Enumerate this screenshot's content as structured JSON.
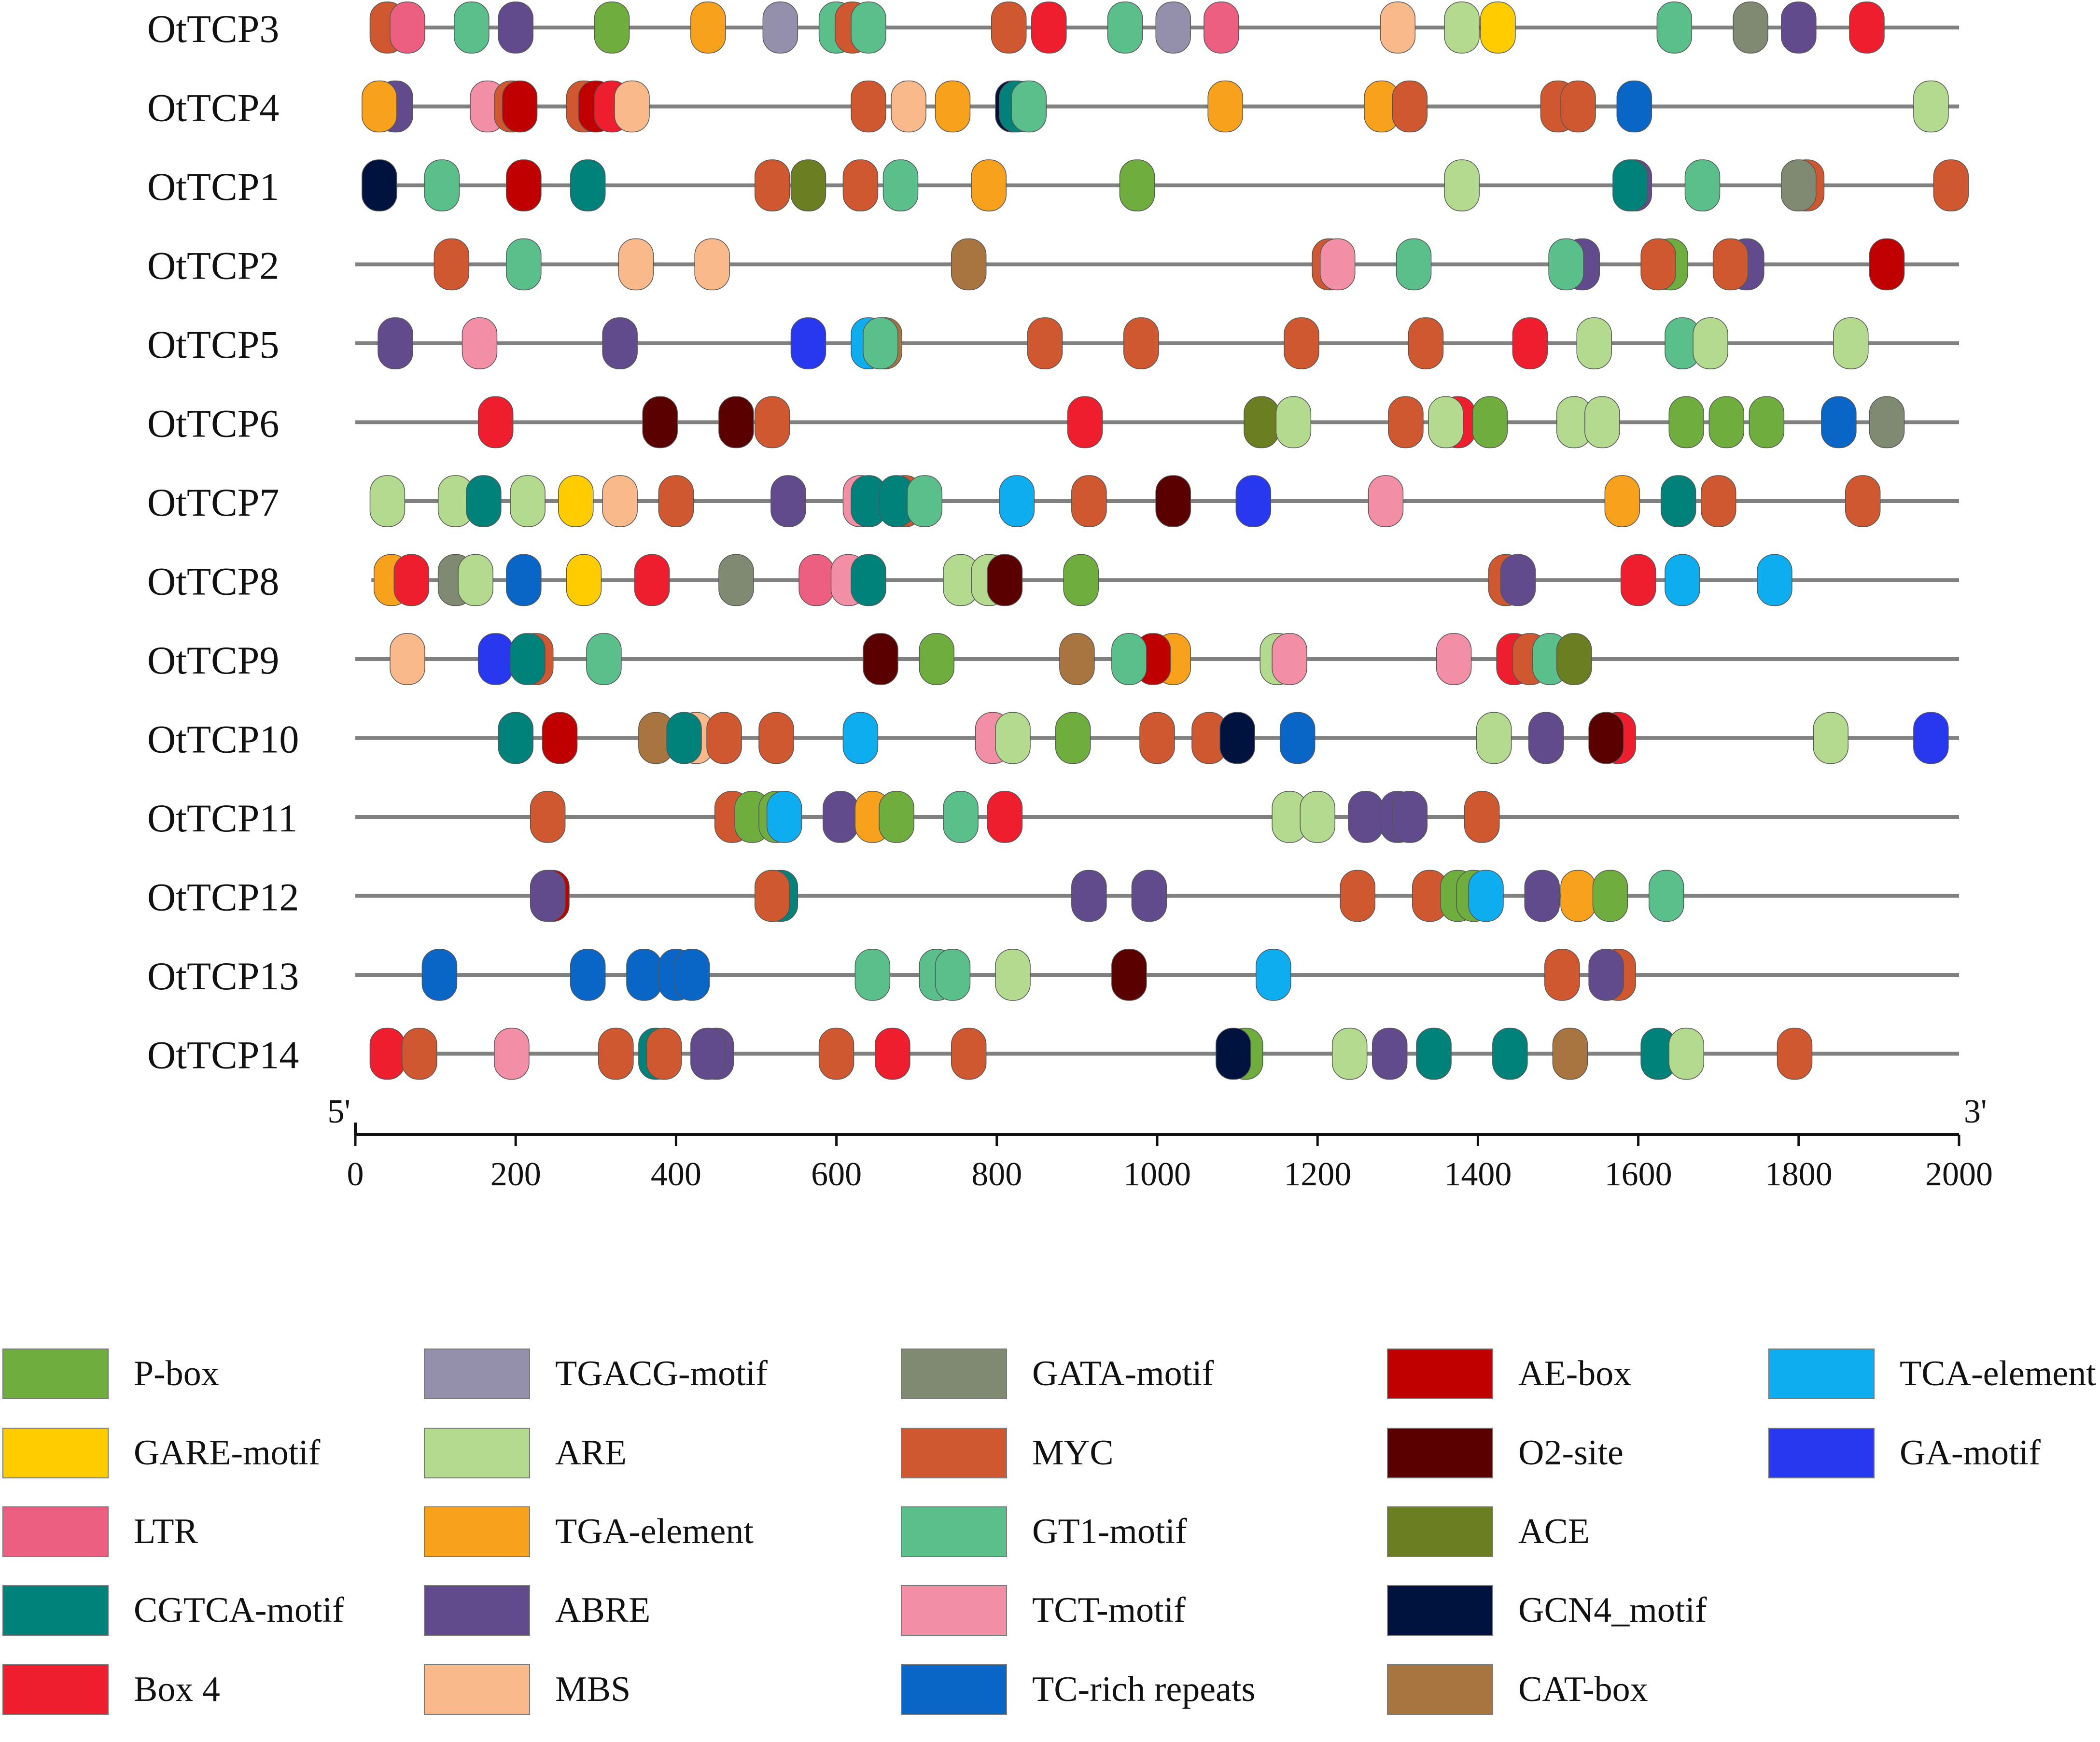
{
  "chart_data": {
    "type": "motif-map",
    "xlim": [
      0,
      2000
    ],
    "x_ticks": [
      "0",
      "200",
      "400",
      "600",
      "800",
      "1000",
      "1200",
      "1400",
      "1600",
      "1800",
      "2000"
    ],
    "x_tick_values": [
      0,
      200,
      400,
      600,
      800,
      1000,
      1200,
      1400,
      1600,
      1800,
      2000
    ],
    "end_labels": {
      "left": "5'",
      "right": "3'"
    },
    "colors": {
      "P-box": "#70ad3f",
      "TGACG-motif": "#9490ab",
      "GATA-motif": "#808a72",
      "AE-box": "#c00000",
      "TCA-element": "#0eadef",
      "GARE-motif": "#ffcc00",
      "ARE": "#b3da8e",
      "MYC": "#d05830",
      "O2-site": "#5a0000",
      "GA-motif": "#2838ef",
      "LTR": "#ed5f80",
      "TGA-element": "#f8a11c",
      "GT1-motif": "#5bbf8c",
      "ACE": "#6b7e22",
      "CGTCA-motif": "#00827a",
      "ABRE": "#624b8c",
      "TCT-motif": "#f28ea6",
      "GCN4_motif": "#00133f",
      "Box 4": "#ee1e2e",
      "MBS": "#f9b98a",
      "TC-rich repeats": "#0a66c6",
      "CAT-box": "#a87541"
    },
    "legend": [
      "P-box",
      "GARE-motif",
      "LTR",
      "CGTCA-motif",
      "Box 4",
      "TGACG-motif",
      "ARE",
      "TGA-element",
      "ABRE",
      "MBS",
      "GATA-motif",
      "MYC",
      "GT1-motif",
      "TCT-motif",
      "TC-rich repeats",
      "AE-box",
      "O2-site",
      "ACE",
      "GCN4_motif",
      "CAT-box",
      "TCA-element",
      "GA-motif"
    ],
    "genes": [
      {
        "name": "OtTCP3",
        "line": [
          20,
          2000
        ],
        "motifs": [
          [
            40,
            "MYC"
          ],
          [
            65,
            "LTR"
          ],
          [
            145,
            "GT1-motif"
          ],
          [
            200,
            "ABRE"
          ],
          [
            320,
            "P-box"
          ],
          [
            440,
            "TGA-element"
          ],
          [
            530,
            "TGACG-motif"
          ],
          [
            600,
            "GT1-motif"
          ],
          [
            620,
            "MYC"
          ],
          [
            640,
            "GT1-motif"
          ],
          [
            815,
            "MYC"
          ],
          [
            865,
            "Box 4"
          ],
          [
            960,
            "GT1-motif"
          ],
          [
            1020,
            "TGACG-motif"
          ],
          [
            1080,
            "LTR"
          ],
          [
            1300,
            "MBS"
          ],
          [
            1380,
            "ARE"
          ],
          [
            1425,
            "GARE-motif"
          ],
          [
            1645,
            "GT1-motif"
          ],
          [
            1740,
            "GATA-motif"
          ],
          [
            1800,
            "ABRE"
          ],
          [
            1885,
            "Box 4"
          ]
        ]
      },
      {
        "name": "OtTCP4",
        "line": [
          20,
          2000
        ],
        "motifs": [
          [
            50,
            "ABRE"
          ],
          [
            30,
            "TGA-element"
          ],
          [
            165,
            "TCT-motif"
          ],
          [
            195,
            "MYC"
          ],
          [
            205,
            "AE-box"
          ],
          [
            285,
            "MYC"
          ],
          [
            300,
            "AE-box"
          ],
          [
            320,
            "Box 4"
          ],
          [
            345,
            "MBS"
          ],
          [
            640,
            "MYC"
          ],
          [
            690,
            "MBS"
          ],
          [
            745,
            "TGA-element"
          ],
          [
            820,
            "GCN4_motif"
          ],
          [
            825,
            "CGTCA-motif"
          ],
          [
            840,
            "GT1-motif"
          ],
          [
            1085,
            "TGA-element"
          ],
          [
            1280,
            "TGA-element"
          ],
          [
            1315,
            "MYC"
          ],
          [
            1500,
            "MYC"
          ],
          [
            1525,
            "MYC"
          ],
          [
            1595,
            "TC-rich repeats"
          ],
          [
            1965,
            "ARE"
          ]
        ]
      },
      {
        "name": "OtTCP1",
        "line": [
          20,
          2000
        ],
        "motifs": [
          [
            30,
            "GCN4_motif"
          ],
          [
            108,
            "GT1-motif"
          ],
          [
            210,
            "AE-box"
          ],
          [
            290,
            "CGTCA-motif"
          ],
          [
            520,
            "MYC"
          ],
          [
            565,
            "ACE"
          ],
          [
            630,
            "MYC"
          ],
          [
            680,
            "GT1-motif"
          ],
          [
            790,
            "TGA-element"
          ],
          [
            975,
            "P-box"
          ],
          [
            1380,
            "ARE"
          ],
          [
            1595,
            "ABRE"
          ],
          [
            1590,
            "CGTCA-motif"
          ],
          [
            1680,
            "GT1-motif"
          ],
          [
            1810,
            "MYC"
          ],
          [
            1800,
            "GATA-motif"
          ],
          [
            1990,
            "MYC"
          ]
        ]
      },
      {
        "name": "OtTCP2",
        "line": [
          0,
          2000
        ],
        "motifs": [
          [
            120,
            "MYC"
          ],
          [
            210,
            "GT1-motif"
          ],
          [
            350,
            "MBS"
          ],
          [
            445,
            "MBS"
          ],
          [
            765,
            "CAT-box"
          ],
          [
            1215,
            "MYC"
          ],
          [
            1225,
            "TCT-motif"
          ],
          [
            1320,
            "GT1-motif"
          ],
          [
            1530,
            "ABRE"
          ],
          [
            1510,
            "GT1-motif"
          ],
          [
            1640,
            "P-box"
          ],
          [
            1625,
            "MYC"
          ],
          [
            1735,
            "ABRE"
          ],
          [
            1715,
            "MYC"
          ],
          [
            1910,
            "AE-box"
          ]
        ]
      },
      {
        "name": "OtTCP5",
        "line": [
          0,
          2000
        ],
        "motifs": [
          [
            50,
            "ABRE"
          ],
          [
            155,
            "TCT-motif"
          ],
          [
            330,
            "ABRE"
          ],
          [
            565,
            "GA-motif"
          ],
          [
            660,
            "CAT-box"
          ],
          [
            640,
            "TCA-element"
          ],
          [
            655,
            "GT1-motif"
          ],
          [
            860,
            "MYC"
          ],
          [
            980,
            "MYC"
          ],
          [
            1180,
            "MYC"
          ],
          [
            1335,
            "MYC"
          ],
          [
            1465,
            "Box 4"
          ],
          [
            1545,
            "ARE"
          ],
          [
            1655,
            "GT1-motif"
          ],
          [
            1690,
            "ARE"
          ],
          [
            1865,
            "ARE"
          ]
        ]
      },
      {
        "name": "OtTCP6",
        "line": [
          0,
          2000
        ],
        "motifs": [
          [
            175,
            "Box 4"
          ],
          [
            380,
            "O2-site"
          ],
          [
            475,
            "O2-site"
          ],
          [
            520,
            "MYC"
          ],
          [
            910,
            "Box 4"
          ],
          [
            1130,
            "ACE"
          ],
          [
            1170,
            "ARE"
          ],
          [
            1310,
            "MYC"
          ],
          [
            1375,
            "Box 4"
          ],
          [
            1360,
            "ARE"
          ],
          [
            1415,
            "P-box"
          ],
          [
            1520,
            "ARE"
          ],
          [
            1555,
            "ARE"
          ],
          [
            1660,
            "P-box"
          ],
          [
            1710,
            "P-box"
          ],
          [
            1760,
            "P-box"
          ],
          [
            1850,
            "TC-rich repeats"
          ],
          [
            1910,
            "GATA-motif"
          ]
        ]
      },
      {
        "name": "OtTCP7",
        "line": [
          20,
          2000
        ],
        "motifs": [
          [
            40,
            "ARE"
          ],
          [
            125,
            "ARE"
          ],
          [
            160,
            "CGTCA-motif"
          ],
          [
            215,
            "ARE"
          ],
          [
            275,
            "GARE-motif"
          ],
          [
            330,
            "MBS"
          ],
          [
            400,
            "MYC"
          ],
          [
            540,
            "ABRE"
          ],
          [
            630,
            "TCT-motif"
          ],
          [
            640,
            "CGTCA-motif"
          ],
          [
            685,
            "MYC"
          ],
          [
            675,
            "CGTCA-motif"
          ],
          [
            710,
            "GT1-motif"
          ],
          [
            825,
            "TCA-element"
          ],
          [
            915,
            "MYC"
          ],
          [
            1020,
            "O2-site"
          ],
          [
            1120,
            "GA-motif"
          ],
          [
            1285,
            "TCT-motif"
          ],
          [
            1580,
            "TGA-element"
          ],
          [
            1650,
            "CGTCA-motif"
          ],
          [
            1700,
            "MYC"
          ],
          [
            1880,
            "MYC"
          ]
        ]
      },
      {
        "name": "OtTCP8",
        "line": [
          20,
          2000
        ],
        "motifs": [
          [
            45,
            "TGA-element"
          ],
          [
            70,
            "Box 4"
          ],
          [
            125,
            "GATA-motif"
          ],
          [
            150,
            "ARE"
          ],
          [
            210,
            "TC-rich repeats"
          ],
          [
            285,
            "GARE-motif"
          ],
          [
            370,
            "Box 4"
          ],
          [
            475,
            "GATA-motif"
          ],
          [
            575,
            "LTR"
          ],
          [
            615,
            "TCT-motif"
          ],
          [
            640,
            "CGTCA-motif"
          ],
          [
            755,
            "ARE"
          ],
          [
            790,
            "ARE"
          ],
          [
            810,
            "O2-site"
          ],
          [
            905,
            "P-box"
          ],
          [
            1435,
            "MYC"
          ],
          [
            1450,
            "ABRE"
          ],
          [
            1600,
            "Box 4"
          ],
          [
            1655,
            "TCA-element"
          ],
          [
            1770,
            "TCA-element"
          ]
        ]
      },
      {
        "name": "OtTCP9",
        "line": [
          0,
          2000
        ],
        "motifs": [
          [
            65,
            "MBS"
          ],
          [
            175,
            "GA-motif"
          ],
          [
            225,
            "MYC"
          ],
          [
            215,
            "CGTCA-motif"
          ],
          [
            310,
            "GT1-motif"
          ],
          [
            655,
            "O2-site"
          ],
          [
            725,
            "P-box"
          ],
          [
            900,
            "CAT-box"
          ],
          [
            1020,
            "TGA-element"
          ],
          [
            995,
            "AE-box"
          ],
          [
            965,
            "GT1-motif"
          ],
          [
            1150,
            "ARE"
          ],
          [
            1165,
            "TCT-motif"
          ],
          [
            1370,
            "TCT-motif"
          ],
          [
            1445,
            "Box 4"
          ],
          [
            1465,
            "MYC"
          ],
          [
            1490,
            "GT1-motif"
          ],
          [
            1520,
            "ACE"
          ]
        ]
      },
      {
        "name": "OtTCP10",
        "line": [
          0,
          2000
        ],
        "motifs": [
          [
            200,
            "CGTCA-motif"
          ],
          [
            255,
            "AE-box"
          ],
          [
            375,
            "CAT-box"
          ],
          [
            425,
            "MBS"
          ],
          [
            410,
            "CGTCA-motif"
          ],
          [
            460,
            "MYC"
          ],
          [
            525,
            "MYC"
          ],
          [
            630,
            "TCA-element"
          ],
          [
            795,
            "TCT-motif"
          ],
          [
            820,
            "ARE"
          ],
          [
            895,
            "P-box"
          ],
          [
            1000,
            "MYC"
          ],
          [
            1065,
            "MYC"
          ],
          [
            1100,
            "GCN4_motif"
          ],
          [
            1175,
            "TC-rich repeats"
          ],
          [
            1420,
            "ARE"
          ],
          [
            1485,
            "ABRE"
          ],
          [
            1575,
            "Box 4"
          ],
          [
            1560,
            "O2-site"
          ],
          [
            1840,
            "ARE"
          ],
          [
            1965,
            "GA-motif"
          ]
        ]
      },
      {
        "name": "OtTCP11",
        "line": [
          0,
          2000
        ],
        "motifs": [
          [
            240,
            "MYC"
          ],
          [
            470,
            "MYC"
          ],
          [
            495,
            "P-box"
          ],
          [
            525,
            "P-box"
          ],
          [
            535,
            "TCA-element"
          ],
          [
            605,
            "ABRE"
          ],
          [
            645,
            "TGA-element"
          ],
          [
            675,
            "P-box"
          ],
          [
            755,
            "GT1-motif"
          ],
          [
            810,
            "Box 4"
          ],
          [
            1165,
            "ARE"
          ],
          [
            1200,
            "ARE"
          ],
          [
            1260,
            "ABRE"
          ],
          [
            1300,
            "ABRE"
          ],
          [
            1315,
            "ABRE"
          ],
          [
            1405,
            "MYC"
          ]
        ]
      },
      {
        "name": "OtTCP12",
        "line": [
          0,
          2000
        ],
        "motifs": [
          [
            245,
            "AE-box"
          ],
          [
            240,
            "ABRE"
          ],
          [
            530,
            "CGTCA-motif"
          ],
          [
            520,
            "MYC"
          ],
          [
            915,
            "ABRE"
          ],
          [
            990,
            "ABRE"
          ],
          [
            1250,
            "MYC"
          ],
          [
            1340,
            "MYC"
          ],
          [
            1375,
            "P-box"
          ],
          [
            1395,
            "P-box"
          ],
          [
            1410,
            "TCA-element"
          ],
          [
            1480,
            "ABRE"
          ],
          [
            1525,
            "TGA-element"
          ],
          [
            1565,
            "P-box"
          ],
          [
            1635,
            "GT1-motif"
          ]
        ]
      },
      {
        "name": "OtTCP13",
        "line": [
          0,
          2000
        ],
        "motifs": [
          [
            105,
            "TC-rich repeats"
          ],
          [
            290,
            "TC-rich repeats"
          ],
          [
            360,
            "TC-rich repeats"
          ],
          [
            400,
            "TC-rich repeats"
          ],
          [
            420,
            "TC-rich repeats"
          ],
          [
            645,
            "GT1-motif"
          ],
          [
            725,
            "GT1-motif"
          ],
          [
            745,
            "GT1-motif"
          ],
          [
            820,
            "ARE"
          ],
          [
            965,
            "O2-site"
          ],
          [
            1145,
            "TCA-element"
          ],
          [
            1505,
            "MYC"
          ],
          [
            1575,
            "MYC"
          ],
          [
            1560,
            "ABRE"
          ]
        ]
      },
      {
        "name": "OtTCP14",
        "line": [
          20,
          2000
        ],
        "motifs": [
          [
            40,
            "Box 4"
          ],
          [
            80,
            "MYC"
          ],
          [
            195,
            "TCT-motif"
          ],
          [
            325,
            "MYC"
          ],
          [
            375,
            "CGTCA-motif"
          ],
          [
            385,
            "MYC"
          ],
          [
            450,
            "ABRE"
          ],
          [
            440,
            "ABRE"
          ],
          [
            600,
            "MYC"
          ],
          [
            670,
            "Box 4"
          ],
          [
            765,
            "MYC"
          ],
          [
            1110,
            "P-box"
          ],
          [
            1095,
            "GCN4_motif"
          ],
          [
            1240,
            "ARE"
          ],
          [
            1290,
            "ABRE"
          ],
          [
            1345,
            "CGTCA-motif"
          ],
          [
            1440,
            "CGTCA-motif"
          ],
          [
            1515,
            "CAT-box"
          ],
          [
            1625,
            "CGTCA-motif"
          ],
          [
            1660,
            "ARE"
          ],
          [
            1795,
            "MYC"
          ]
        ]
      }
    ]
  }
}
